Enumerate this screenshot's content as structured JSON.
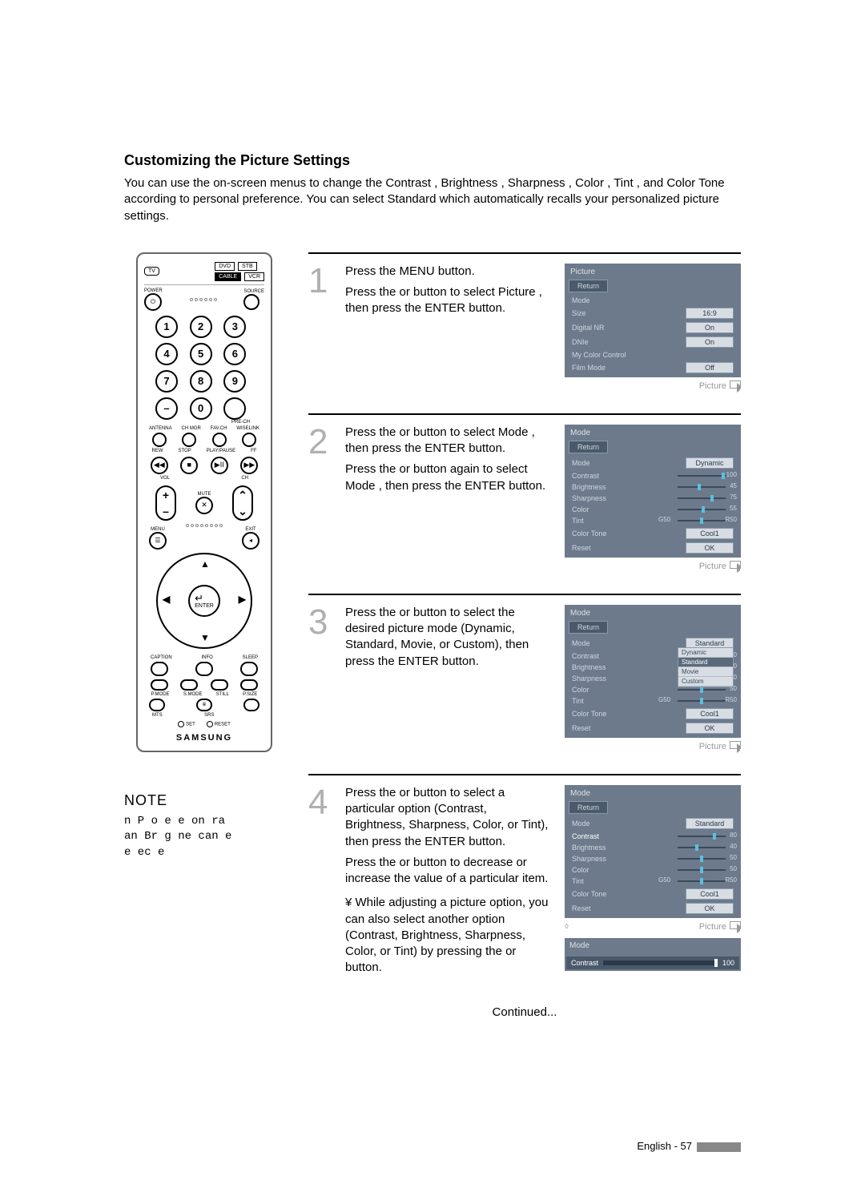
{
  "heading": "Customizing the Picture Settings",
  "intro": "You can use the on-screen menus to change the  Contrast ,  Brightness ,  Sharpness ,  Color ,  Tint , and  Color Tone  according to personal preference. You can select  Standard  which automatically recalls your personalized picture settings.",
  "remote": {
    "devices_top": [
      "DVD",
      "STB"
    ],
    "devices_bot": [
      "CABLE",
      "VCR"
    ],
    "tv": "TV",
    "power": "POWER",
    "source": "SOURCE",
    "nums": [
      "1",
      "2",
      "3",
      "4",
      "5",
      "6",
      "7",
      "8",
      "9",
      "–",
      "0",
      " "
    ],
    "prech": "PRE-CH",
    "row_a": [
      "ANTENNA",
      "CH MGR",
      "FAV.CH",
      "WISELINK"
    ],
    "row_b": [
      "REW",
      "STOP",
      "PLAY/PAUSE",
      "FF"
    ],
    "vol": "VOL",
    "ch": "CH",
    "mute": "MUTE",
    "menu": "MENU",
    "exit": "EXIT",
    "enter": "ENTER",
    "row_c": [
      "CAPTION",
      "INFO",
      "SLEEP"
    ],
    "row_d": [
      "P.MODE",
      "S.MODE",
      "STILL",
      "P.SIZE"
    ],
    "row_e": [
      "MTS",
      "SRS",
      " "
    ],
    "set": "SET",
    "reset": "RESET",
    "brand": "SAMSUNG"
  },
  "steps": [
    {
      "num": "1",
      "text": "Press the MENU button.\nPress the   or   button to select  Picture , then press the ENTER button.",
      "footer": "Picture",
      "osd": {
        "title": "Picture",
        "return": "Return",
        "rows": [
          {
            "l": "Mode",
            "v": ""
          },
          {
            "l": "Size",
            "v": "16:9"
          },
          {
            "l": "Digital NR",
            "v": "On"
          },
          {
            "l": "DNIe",
            "v": "On"
          },
          {
            "l": "My Color Control",
            "v": ""
          },
          {
            "l": "Film Mode",
            "v": "Off"
          }
        ]
      }
    },
    {
      "num": "2",
      "text": "Press the   or   button to select  Mode , then press the ENTER button.\nPress the   or   button again to select  Mode , then press the ENTER button.",
      "footer": "Picture",
      "osd": {
        "title": "Mode",
        "return": "Return",
        "rows": [
          {
            "l": "Mode",
            "v": "Dynamic"
          },
          {
            "l": "Contrast",
            "v": "100",
            "slider": true,
            "pos": 100
          },
          {
            "l": "Brightness",
            "v": "45",
            "slider": true,
            "pos": 45
          },
          {
            "l": "Sharpness",
            "v": "75",
            "slider": true,
            "pos": 75
          },
          {
            "l": "Color",
            "v": "55",
            "slider": true,
            "pos": 55
          },
          {
            "l": "Tint",
            "v": "R50",
            "slider": true,
            "pos": 50,
            "prefix": "G50"
          },
          {
            "l": "Color Tone",
            "v": "Cool1"
          },
          {
            "l": "Reset",
            "v": "OK"
          }
        ]
      }
    },
    {
      "num": "3",
      "text": "Press the   or   button to select the desired picture mode (Dynamic, Standard, Movie, or Custom), then press the ENTER button.",
      "footer": "Picture",
      "dropdown": [
        "Dynamic",
        "Standard",
        "Movie",
        "Custom"
      ],
      "osd": {
        "title": "Mode",
        "return": "Return",
        "rows": [
          {
            "l": "Mode",
            "v": "Standard"
          },
          {
            "l": "Contrast",
            "v": "50",
            "slider": true,
            "pos": 50
          },
          {
            "l": "Brightness",
            "v": "50",
            "slider": true,
            "pos": 50
          },
          {
            "l": "Sharpness",
            "v": "50",
            "slider": true,
            "pos": 50
          },
          {
            "l": "Color",
            "v": "50",
            "slider": true,
            "pos": 50
          },
          {
            "l": "Tint",
            "v": "R50",
            "slider": true,
            "pos": 50,
            "prefix": "G50"
          },
          {
            "l": "Color Tone",
            "v": "Cool1"
          },
          {
            "l": "Reset",
            "v": "OK"
          }
        ]
      }
    },
    {
      "num": "4",
      "textA": "Press the   or   button to select a particular option (Contrast, Brightness, Sharpness, Color, or Tint), then press the ENTER button.",
      "textB": "Press the   or   button to decrease or increase the value of a particular item.",
      "bullet": "While adjusting a picture option, you can also select another option (Contrast, Brightness, Sharpness, Color, or Tint) by pressing the   or   button.",
      "footer": "Picture",
      "osd": {
        "title": "Mode",
        "return": "Return",
        "rows": [
          {
            "l": "Mode",
            "v": "Standard"
          },
          {
            "l": "Contrast",
            "v": "80",
            "slider": true,
            "pos": 80,
            "hl": true
          },
          {
            "l": "Brightness",
            "v": "40",
            "slider": true,
            "pos": 40
          },
          {
            "l": "Sharpness",
            "v": "50",
            "slider": true,
            "pos": 50
          },
          {
            "l": "Color",
            "v": "50",
            "slider": true,
            "pos": 50
          },
          {
            "l": "Tint",
            "v": "R50",
            "slider": true,
            "pos": 50,
            "prefix": "G50"
          },
          {
            "l": "Color Tone",
            "v": "Cool1"
          },
          {
            "l": "Reset",
            "v": "OK"
          }
        ]
      },
      "contrast_bar": {
        "title": "Mode",
        "label": "Contrast",
        "value": "100"
      }
    }
  ],
  "note": {
    "heading": "NOTE",
    "body": " n P  o e   e  on ra \nan  Br g ne   can  e\n e ec e "
  },
  "continued": "Continued...",
  "pagefoot": "English - 57"
}
